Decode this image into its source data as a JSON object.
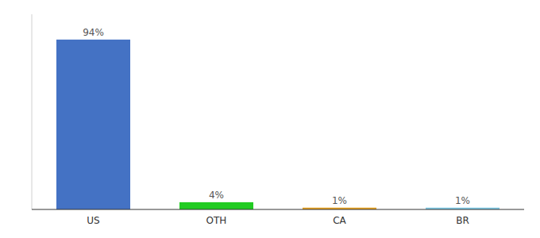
{
  "chart_data": {
    "type": "bar",
    "categories": [
      "US",
      "OTH",
      "CA",
      "BR"
    ],
    "values": [
      94,
      4,
      1,
      1
    ],
    "value_labels": [
      "94%",
      "4%",
      "1%",
      "1%"
    ],
    "colors": [
      "#4472c4",
      "#22cc22",
      "#e6a020",
      "#7ec8e3"
    ],
    "ylim": [
      0,
      108
    ],
    "data_labels": true,
    "tick_labels": "x",
    "grid": false
  }
}
